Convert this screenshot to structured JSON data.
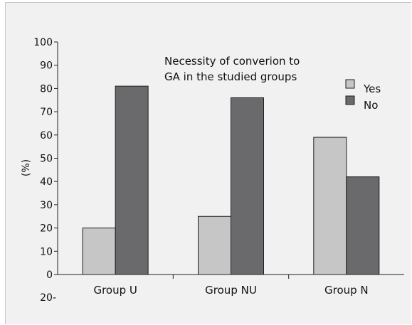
{
  "chart_data": {
    "type": "bar",
    "title": "Necessity of converion to GA in the studied groups",
    "title_lines": [
      "Necessity of converion to",
      "GA in the studied groups"
    ],
    "ylabel": "(%)",
    "xlabel": "",
    "categories": [
      "Group U",
      "Group NU",
      "Group N"
    ],
    "series": [
      {
        "name": "Yes",
        "values": [
          20,
          25,
          59
        ],
        "color": "#c6c6c6"
      },
      {
        "name": "No",
        "values": [
          81,
          76,
          42
        ],
        "color": "#6a6a6d"
      }
    ],
    "ylim": [
      0,
      100
    ],
    "yticks": [
      "0",
      "10",
      "20",
      "30",
      "40",
      "50",
      "60",
      "70",
      "80",
      "90",
      "100"
    ],
    "extra_tick_label": "20-",
    "legend_position": "top-right",
    "grid": false
  }
}
